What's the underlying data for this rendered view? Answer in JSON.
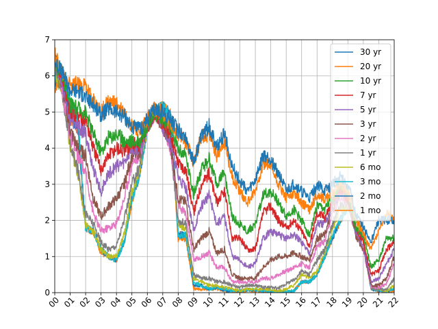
{
  "chart_data": {
    "type": "line",
    "title": "",
    "xlabel": "",
    "ylabel": "",
    "xlim": [
      2000,
      2022
    ],
    "ylim": [
      0,
      7
    ],
    "grid": true,
    "legend_position": "top-right",
    "x_tick_labels": [
      "00",
      "01",
      "02",
      "03",
      "04",
      "05",
      "06",
      "07",
      "08",
      "09",
      "10",
      "11",
      "12",
      "13",
      "14",
      "15",
      "16",
      "17",
      "18",
      "19",
      "20",
      "21",
      "22"
    ],
    "y_tick_labels": [
      "0",
      "1",
      "2",
      "3",
      "4",
      "5",
      "6",
      "7"
    ],
    "x": [
      2000.0,
      2000.5,
      2001.0,
      2001.5,
      2002.0,
      2002.5,
      2003.0,
      2003.5,
      2004.0,
      2004.5,
      2005.0,
      2005.5,
      2006.0,
      2006.5,
      2007.0,
      2007.5,
      2008.0,
      2008.5,
      2009.0,
      2009.5,
      2010.0,
      2010.5,
      2011.0,
      2011.5,
      2012.0,
      2012.5,
      2013.0,
      2013.5,
      2014.0,
      2014.5,
      2015.0,
      2015.5,
      2016.0,
      2016.5,
      2017.0,
      2017.5,
      2018.0,
      2018.5,
      2019.0,
      2019.5,
      2020.0,
      2020.5,
      2021.0,
      2021.5,
      2022.0
    ],
    "series": [
      {
        "name": "30 yr",
        "color": "#1f77b4",
        "values": [
          6.4,
          6.1,
          5.6,
          5.6,
          5.4,
          5.2,
          4.9,
          5.1,
          5.0,
          4.9,
          4.6,
          4.5,
          4.8,
          5.1,
          5.0,
          4.8,
          4.5,
          4.3,
          3.6,
          4.3,
          4.6,
          4.0,
          4.4,
          3.5,
          3.1,
          2.8,
          3.1,
          3.8,
          3.7,
          3.3,
          2.8,
          3.0,
          2.8,
          2.6,
          3.0,
          2.8,
          3.0,
          3.2,
          3.0,
          2.2,
          1.8,
          1.4,
          2.0,
          2.0,
          2.0
        ]
      },
      {
        "name": "20 yr",
        "color": "#ff7f0e",
        "values": [
          6.6,
          6.1,
          5.7,
          5.8,
          5.7,
          5.3,
          5.0,
          5.3,
          5.2,
          5.0,
          4.6,
          4.5,
          4.8,
          5.1,
          5.0,
          4.6,
          4.4,
          4.2,
          3.6,
          4.3,
          4.4,
          3.8,
          4.2,
          3.2,
          2.8,
          2.5,
          2.8,
          3.6,
          3.5,
          3.0,
          2.6,
          2.8,
          2.5,
          2.3,
          2.7,
          2.6,
          2.8,
          3.0,
          2.8,
          2.1,
          1.6,
          1.2,
          1.7,
          2.2,
          2.0
        ]
      },
      {
        "name": "10 yr",
        "color": "#2ca02c",
        "values": [
          6.4,
          6.0,
          5.2,
          5.1,
          5.0,
          4.4,
          3.9,
          4.3,
          4.4,
          4.2,
          4.2,
          4.2,
          4.6,
          5.0,
          4.8,
          4.6,
          4.0,
          3.8,
          2.7,
          3.4,
          3.7,
          3.0,
          3.3,
          2.1,
          1.9,
          1.7,
          1.9,
          2.7,
          2.8,
          2.5,
          2.1,
          2.3,
          2.0,
          1.6,
          2.4,
          2.3,
          2.6,
          3.0,
          2.7,
          1.8,
          1.6,
          0.7,
          0.9,
          1.5,
          1.5
        ]
      },
      {
        "name": "7 yr",
        "color": "#d62728",
        "values": [
          6.5,
          5.9,
          5.0,
          4.9,
          4.8,
          4.0,
          3.4,
          3.8,
          4.0,
          3.9,
          4.1,
          4.1,
          4.6,
          5.0,
          4.7,
          4.4,
          3.6,
          3.4,
          2.2,
          3.0,
          3.3,
          2.5,
          2.8,
          1.5,
          1.5,
          1.2,
          1.2,
          2.2,
          2.4,
          2.0,
          1.8,
          2.0,
          1.7,
          1.3,
          2.2,
          2.1,
          2.5,
          2.9,
          2.6,
          1.8,
          1.4,
          0.5,
          0.6,
          1.2,
          1.4
        ]
      },
      {
        "name": "5 yr",
        "color": "#9467bd",
        "values": [
          6.5,
          5.8,
          4.8,
          4.6,
          4.4,
          3.4,
          2.8,
          3.3,
          3.5,
          3.6,
          4.0,
          4.0,
          4.6,
          5.0,
          4.6,
          4.2,
          3.2,
          2.9,
          1.7,
          2.4,
          2.7,
          1.9,
          2.1,
          1.0,
          0.9,
          0.7,
          0.8,
          1.5,
          1.7,
          1.6,
          1.5,
          1.6,
          1.4,
          1.1,
          1.9,
          1.9,
          2.4,
          2.8,
          2.6,
          1.7,
          1.3,
          0.3,
          0.4,
          0.8,
          1.2
        ]
      },
      {
        "name": "3 yr",
        "color": "#8c564b",
        "values": [
          6.6,
          5.7,
          4.5,
          4.0,
          3.8,
          2.6,
          2.1,
          2.4,
          2.6,
          3.0,
          3.8,
          3.9,
          4.6,
          5.0,
          4.6,
          4.1,
          2.6,
          2.5,
          1.2,
          1.5,
          1.7,
          1.1,
          1.2,
          0.5,
          0.4,
          0.4,
          0.4,
          0.7,
          0.9,
          1.0,
          1.0,
          1.1,
          1.0,
          0.9,
          1.5,
          1.6,
          2.3,
          2.8,
          2.6,
          1.6,
          1.2,
          0.2,
          0.2,
          0.4,
          1.0
        ]
      },
      {
        "name": "2 yr",
        "color": "#e377c2",
        "values": [
          6.6,
          5.6,
          4.3,
          3.8,
          3.3,
          2.2,
          1.7,
          1.8,
          1.9,
          2.6,
          3.6,
          3.8,
          4.6,
          5.0,
          4.6,
          4.0,
          2.4,
          2.2,
          0.9,
          1.0,
          1.1,
          0.7,
          0.7,
          0.3,
          0.3,
          0.3,
          0.3,
          0.4,
          0.4,
          0.5,
          0.6,
          0.7,
          0.8,
          0.7,
          1.3,
          1.4,
          2.2,
          2.7,
          2.5,
          1.6,
          1.2,
          0.15,
          0.15,
          0.25,
          0.8
        ]
      },
      {
        "name": "1 yr",
        "color": "#7f7f7f",
        "values": [
          6.3,
          5.5,
          4.1,
          3.4,
          2.2,
          1.9,
          1.4,
          1.2,
          1.3,
          2.0,
          3.0,
          3.5,
          4.8,
          5.1,
          4.9,
          4.1,
          2.0,
          1.9,
          0.5,
          0.4,
          0.4,
          0.3,
          0.3,
          0.2,
          0.15,
          0.2,
          0.2,
          0.15,
          0.15,
          0.12,
          0.25,
          0.35,
          0.6,
          0.5,
          0.9,
          1.2,
          1.9,
          2.4,
          2.5,
          1.7,
          1.5,
          0.12,
          0.1,
          0.08,
          0.4
        ]
      },
      {
        "name": "6 mo",
        "color": "#bcbd22",
        "values": [
          6.2,
          5.5,
          4.0,
          3.3,
          1.9,
          1.7,
          1.2,
          1.0,
          1.0,
          1.6,
          2.8,
          3.4,
          4.7,
          5.0,
          4.9,
          4.2,
          1.9,
          1.8,
          0.4,
          0.3,
          0.2,
          0.2,
          0.15,
          0.1,
          0.05,
          0.1,
          0.1,
          0.1,
          0.08,
          0.05,
          0.1,
          0.2,
          0.5,
          0.4,
          0.6,
          1.1,
          1.8,
          2.3,
          2.4,
          2.0,
          1.6,
          0.15,
          0.1,
          0.05,
          0.2
        ]
      },
      {
        "name": "3 mo",
        "color": "#17becf",
        "values": [
          5.9,
          6.1,
          5.3,
          4.8,
          1.8,
          1.7,
          1.2,
          1.0,
          0.9,
          1.4,
          2.6,
          3.3,
          4.6,
          5.0,
          5.1,
          4.8,
          1.6,
          1.6,
          0.3,
          0.2,
          0.1,
          0.15,
          0.1,
          0.05,
          0.05,
          0.08,
          0.08,
          0.05,
          0.05,
          0.03,
          0.02,
          0.05,
          0.3,
          0.3,
          0.5,
          1.0,
          1.6,
          2.0,
          2.4,
          2.1,
          1.5,
          0.12,
          0.08,
          0.05,
          0.1
        ]
      },
      {
        "name": "2 mo",
        "color": "#1f77b4",
        "values": [
          5.8,
          6.0,
          5.0,
          4.6,
          1.8,
          1.7,
          1.2,
          1.0,
          0.9,
          1.4,
          2.6,
          3.3,
          4.6,
          5.0,
          5.1,
          4.9,
          1.6,
          1.6,
          0.2,
          0.2,
          0.1,
          0.15,
          0.05,
          0.05,
          0.05,
          0.08,
          0.07,
          0.04,
          0.04,
          0.02,
          0.02,
          0.05,
          0.3,
          0.3,
          0.5,
          1.0,
          1.5,
          2.0,
          2.4,
          2.1,
          1.5,
          0.1,
          0.05,
          0.05,
          0.1
        ]
      },
      {
        "name": "1 mo",
        "color": "#ff7f0e",
        "values": [
          5.7,
          6.0,
          4.9,
          4.5,
          1.8,
          1.7,
          1.1,
          1.0,
          0.9,
          1.4,
          2.5,
          3.3,
          4.6,
          5.0,
          5.1,
          4.9,
          1.5,
          1.5,
          0.1,
          0.1,
          0.1,
          0.1,
          0.05,
          0.02,
          0.03,
          0.05,
          0.05,
          0.03,
          0.03,
          0.02,
          0.01,
          0.05,
          0.3,
          0.3,
          0.5,
          1.0,
          1.5,
          2.0,
          2.4,
          2.1,
          1.4,
          0.1,
          0.05,
          0.05,
          0.05
        ]
      }
    ]
  }
}
